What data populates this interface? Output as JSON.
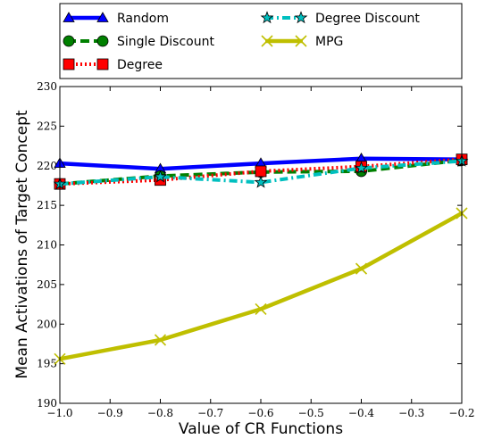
{
  "chart_data": {
    "type": "line",
    "xlabel": "Value of CR Functions",
    "ylabel": "Mean Activations of Target Concept",
    "xlim": [
      -1.0,
      -0.2
    ],
    "ylim": [
      190,
      230
    ],
    "x_ticks": [
      -1.0,
      -0.9,
      -0.8,
      -0.7,
      -0.6,
      -0.5,
      -0.4,
      -0.3,
      -0.2
    ],
    "x_tick_labels": [
      "−1.0",
      "−0.9",
      "−0.8",
      "−0.7",
      "−0.6",
      "−0.5",
      "−0.4",
      "−0.3",
      "−0.2"
    ],
    "y_ticks": [
      190,
      195,
      200,
      205,
      210,
      215,
      220,
      225,
      230
    ],
    "y_tick_labels": [
      "190",
      "195",
      "200",
      "205",
      "210",
      "215",
      "220",
      "225",
      "230"
    ],
    "x": [
      -1.0,
      -0.8,
      -0.6,
      -0.4,
      -0.2
    ],
    "legend_placement": "top, above plot, two columns",
    "series": [
      {
        "name": "Random",
        "values": [
          220.3,
          219.6,
          220.3,
          220.9,
          220.8
        ],
        "color": "#0000ff",
        "marker": "triangle",
        "linestyle": "solid"
      },
      {
        "name": "Single Discount",
        "values": [
          217.7,
          218.7,
          219.2,
          219.3,
          220.7
        ],
        "color": "#008000",
        "marker": "circle",
        "linestyle": "dashed"
      },
      {
        "name": "Degree",
        "values": [
          217.7,
          218.2,
          219.3,
          219.9,
          220.8
        ],
        "color": "#ff0000",
        "marker": "square",
        "linestyle": "dotted"
      },
      {
        "name": "Degree Discount",
        "values": [
          217.7,
          218.6,
          217.9,
          219.7,
          220.6
        ],
        "color": "#00bfbf",
        "marker": "star",
        "linestyle": "dashdot"
      },
      {
        "name": "MPG",
        "values": [
          195.6,
          198.0,
          201.9,
          207.0,
          214.0
        ],
        "color": "#bfbf00",
        "marker": "x",
        "linestyle": "solid"
      }
    ]
  }
}
